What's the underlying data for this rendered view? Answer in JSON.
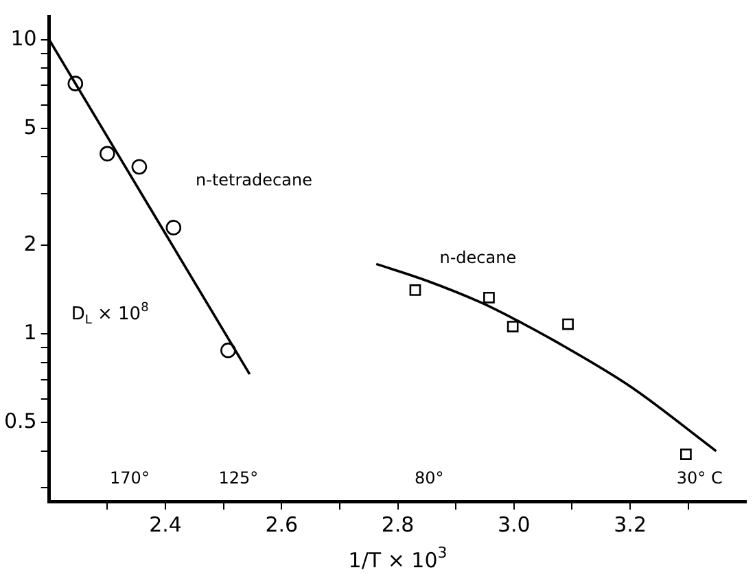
{
  "chart_data": {
    "type": "scatter",
    "xlabel": "1/T × 10$^{3}$",
    "ylabel": "D$_{L}$ × 10$^{8}$",
    "log": "y",
    "grid": false,
    "legend": false,
    "xlim": [
      2.2,
      3.4
    ],
    "ylim": [
      0.27,
      12
    ],
    "xticks": [
      {
        "value": 2.3,
        "label": null
      },
      2.4,
      {
        "value": 2.5,
        "label": null
      },
      2.6,
      {
        "value": 2.7,
        "label": null
      },
      2.8,
      {
        "value": 2.9,
        "label": null
      },
      {
        "value": 3.0,
        "label": "3.0"
      },
      {
        "value": 3.1,
        "label": null
      },
      3.2,
      {
        "value": 3.3,
        "label": null
      }
    ],
    "yticks": [
      {
        "value": 0.3,
        "label": null
      },
      {
        "value": 0.4,
        "label": null
      },
      0.5,
      {
        "value": 0.6,
        "label": null
      },
      {
        "value": 0.7,
        "label": null
      },
      {
        "value": 0.8,
        "label": null
      },
      {
        "value": 0.9,
        "label": null
      },
      1,
      2,
      {
        "value": 3,
        "label": null
      },
      {
        "value": 4,
        "label": null
      },
      5,
      {
        "value": 6,
        "label": null
      },
      {
        "value": 7,
        "label": null
      },
      {
        "value": 8,
        "label": null
      },
      {
        "value": 9,
        "label": null
      },
      10
    ],
    "series": [
      {
        "type": "scatter",
        "marker": "circle",
        "color": "#000000",
        "x": [
          2.245,
          2.3,
          2.355,
          2.414,
          2.508
        ],
        "values": [
          7.1,
          4.1,
          3.7,
          2.3,
          0.88
        ]
      },
      {
        "type": "line",
        "name": "n-tetradecane",
        "marker": "none",
        "color": "#000000",
        "x": [
          2.2,
          2.545
        ],
        "values": [
          10,
          0.73
        ]
      },
      {
        "type": "scatter",
        "marker": "square",
        "color": "#000000",
        "x": [
          2.83,
          2.957,
          2.998,
          3.093,
          3.296
        ],
        "values": [
          1.41,
          1.33,
          1.06,
          1.08,
          0.39
        ]
      },
      {
        "type": "line",
        "name": "n-decane",
        "marker": "none",
        "color": "#000000",
        "x": [
          2.763,
          2.849,
          2.943,
          3.006,
          3.069,
          3.202,
          3.348
        ],
        "values": [
          1.73,
          1.52,
          1.28,
          1.11,
          0.95,
          0.66,
          0.4
        ]
      }
    ],
    "annotations": [
      "170°",
      "125°",
      "80°",
      "30° C"
    ]
  }
}
